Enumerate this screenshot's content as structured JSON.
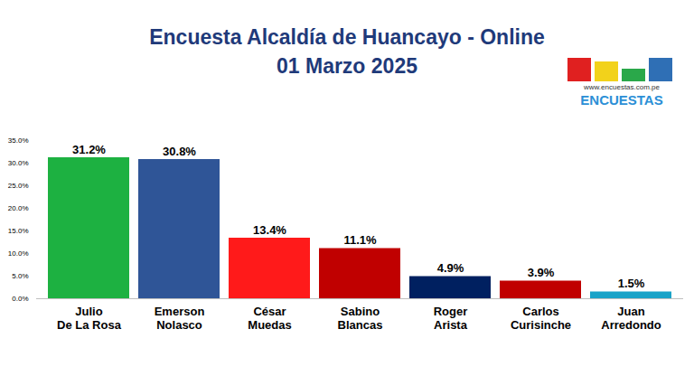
{
  "chart_data": {
    "type": "bar",
    "title": "Encuesta Alcaldía de Huancayo - Online",
    "subtitle": "01 Marzo 2025",
    "annotations": [
      "www.encuestas.com.pe",
      "ENCUESTAS"
    ],
    "categories": [
      "Julio De La Rosa",
      "Emerson Nolasco",
      "César Muedas",
      "Sabino Blancas",
      "Roger Arista",
      "Carlos Curisinche",
      "Juan Arredondo"
    ],
    "values": [
      31.2,
      30.8,
      13.4,
      11.1,
      4.9,
      3.9,
      1.5
    ],
    "value_labels": [
      "31.2%",
      "30.8%",
      "13.4%",
      "11.1%",
      "4.9%",
      "3.9%",
      "1.5%"
    ],
    "colors": [
      "#1db141",
      "#2f5597",
      "#ff1a1a",
      "#c00000",
      "#002060",
      "#c00000",
      "#1aa3c8"
    ],
    "ylim": [
      0,
      35
    ],
    "yticks": [
      {
        "value": 0,
        "label": "0.0%"
      },
      {
        "value": 5,
        "label": "5.0%"
      },
      {
        "value": 10,
        "label": "10.0%"
      },
      {
        "value": 15,
        "label": "15.0%"
      },
      {
        "value": 20,
        "label": "20.0%"
      },
      {
        "value": 25,
        "label": "25.0%"
      },
      {
        "value": 30,
        "label": "30.0%"
      },
      {
        "value": 35,
        "label": "35.0%"
      }
    ],
    "grid": false,
    "data_labels": true
  }
}
